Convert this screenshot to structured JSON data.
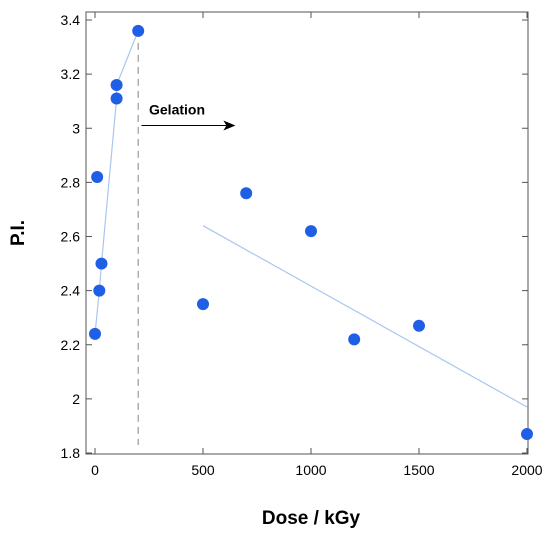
{
  "chart_data": {
    "type": "scatter",
    "title": "",
    "xlabel": "Dose / kGy",
    "ylabel": "P.I.",
    "xlim": [
      0,
      2000
    ],
    "ylim": [
      1.8,
      3.4
    ],
    "xticks": [
      0,
      500,
      1000,
      1500,
      2000
    ],
    "xtick_labels": [
      "0",
      "500",
      "1000",
      "1500",
      "2000"
    ],
    "yticks": [
      1.8,
      2.0,
      2.2,
      2.4,
      2.6,
      2.8,
      3.0,
      3.2,
      3.4
    ],
    "ytick_labels": [
      "1.8",
      "2",
      "2.2",
      "2.4",
      "2.6",
      "2.8",
      "3",
      "3.2",
      "3.4"
    ],
    "grid": false,
    "points": {
      "x": [
        0,
        10,
        20,
        30,
        100,
        100,
        200,
        500,
        700,
        1000,
        1200,
        1500,
        2000
      ],
      "y": [
        2.24,
        2.82,
        2.4,
        2.5,
        3.11,
        3.16,
        3.36,
        2.35,
        2.76,
        2.62,
        2.22,
        2.27,
        1.87
      ]
    },
    "fit_lines": [
      {
        "x": [
          0,
          20,
          30,
          100,
          100,
          200
        ],
        "y": [
          2.24,
          2.4,
          2.5,
          3.11,
          3.16,
          3.36
        ]
      },
      {
        "x": [
          500,
          2000
        ],
        "y": [
          2.64,
          1.97
        ]
      }
    ],
    "marker_line": {
      "x": 200,
      "y_from": 1.8,
      "y_to": 3.36,
      "style": "dashed"
    },
    "annotation": {
      "text": "Gelation",
      "arrow_from": 215,
      "arrow_to": 650,
      "y": 3.01,
      "text_x": 250,
      "text_y": 3.07
    },
    "colors": {
      "points": "#1f5fe6",
      "fit_line": "#a9c6ee",
      "marker_line": "#9a9a9a",
      "axes": "#555555"
    }
  }
}
